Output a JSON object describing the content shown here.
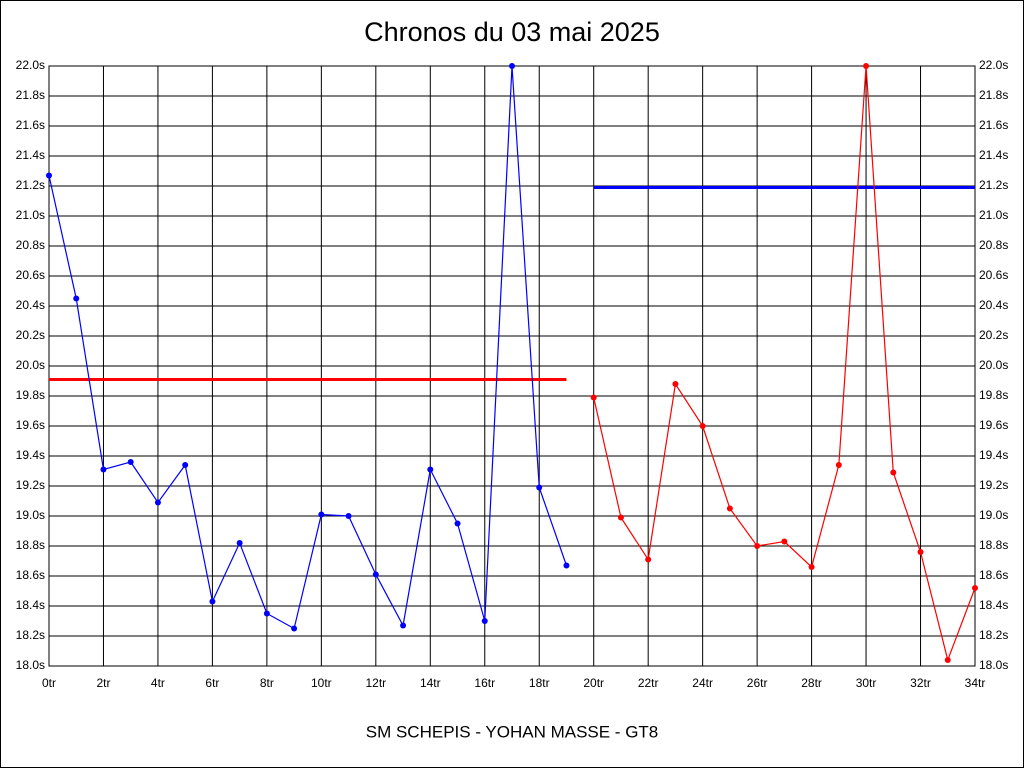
{
  "chart_data": {
    "type": "line",
    "title": "Chronos du 03 mai 2025",
    "x_label": "SM SCHEPIS - YOHAN MASSE - GT8",
    "xlim": [
      0,
      34
    ],
    "xticks": [
      {
        "value": 0,
        "label": "0tr"
      },
      {
        "value": 2,
        "label": "2tr"
      },
      {
        "value": 4,
        "label": "4tr"
      },
      {
        "value": 6,
        "label": "6tr"
      },
      {
        "value": 8,
        "label": "8tr"
      },
      {
        "value": 10,
        "label": "10tr"
      },
      {
        "value": 12,
        "label": "12tr"
      },
      {
        "value": 14,
        "label": "14tr"
      },
      {
        "value": 16,
        "label": "16tr"
      },
      {
        "value": 18,
        "label": "18tr"
      },
      {
        "value": 20,
        "label": "20tr"
      },
      {
        "value": 22,
        "label": "22tr"
      },
      {
        "value": 24,
        "label": "24tr"
      },
      {
        "value": 26,
        "label": "26tr"
      },
      {
        "value": 28,
        "label": "28tr"
      },
      {
        "value": 30,
        "label": "30tr"
      },
      {
        "value": 32,
        "label": "32tr"
      },
      {
        "value": 34,
        "label": "34tr"
      }
    ],
    "ylim": [
      18.0,
      22.0
    ],
    "yticks": [
      {
        "value": 18.0,
        "label": "18.0s"
      },
      {
        "value": 18.2,
        "label": "18.2s"
      },
      {
        "value": 18.4,
        "label": "18.4s"
      },
      {
        "value": 18.6,
        "label": "18.6s"
      },
      {
        "value": 18.8,
        "label": "18.8s"
      },
      {
        "value": 19.0,
        "label": "19.0s"
      },
      {
        "value": 19.2,
        "label": "19.2s"
      },
      {
        "value": 19.4,
        "label": "19.4s"
      },
      {
        "value": 19.6,
        "label": "19.6s"
      },
      {
        "value": 19.8,
        "label": "19.8s"
      },
      {
        "value": 20.0,
        "label": "20.0s"
      },
      {
        "value": 20.2,
        "label": "20.2s"
      },
      {
        "value": 20.4,
        "label": "20.4s"
      },
      {
        "value": 20.6,
        "label": "20.6s"
      },
      {
        "value": 20.8,
        "label": "20.8s"
      },
      {
        "value": 21.0,
        "label": "21.0s"
      },
      {
        "value": 21.2,
        "label": "21.2s"
      },
      {
        "value": 21.4,
        "label": "21.4s"
      },
      {
        "value": 21.6,
        "label": "21.6s"
      },
      {
        "value": 21.8,
        "label": "21.8s"
      },
      {
        "value": 22.0,
        "label": "22.0s"
      }
    ],
    "grid": true,
    "series": [
      {
        "color": "#0000ff",
        "x": [
          0,
          1,
          2,
          3,
          4,
          5,
          6,
          7,
          8,
          9,
          10,
          11,
          12,
          13,
          14,
          15,
          16,
          17,
          18,
          19
        ],
        "values": [
          21.27,
          20.45,
          19.31,
          19.36,
          19.09,
          19.34,
          18.43,
          18.82,
          18.35,
          18.25,
          19.01,
          19.0,
          18.61,
          18.27,
          19.31,
          18.95,
          18.3,
          22.0,
          19.19,
          18.67
        ]
      },
      {
        "color": "#ff0000",
        "x": [
          20,
          21,
          22,
          23,
          24,
          25,
          26,
          27,
          28,
          29,
          30,
          31,
          32,
          33,
          34
        ],
        "values": [
          19.79,
          18.99,
          18.71,
          19.88,
          19.6,
          19.05,
          18.8,
          18.83,
          18.66,
          19.34,
          22.0,
          19.29,
          18.76,
          18.04,
          18.52
        ]
      }
    ],
    "reference_lines": [
      {
        "color": "#ff0000",
        "value": 19.91,
        "x": [
          0,
          19
        ]
      },
      {
        "color": "#0000ff",
        "value": 21.19,
        "x": [
          20,
          34
        ]
      }
    ]
  }
}
